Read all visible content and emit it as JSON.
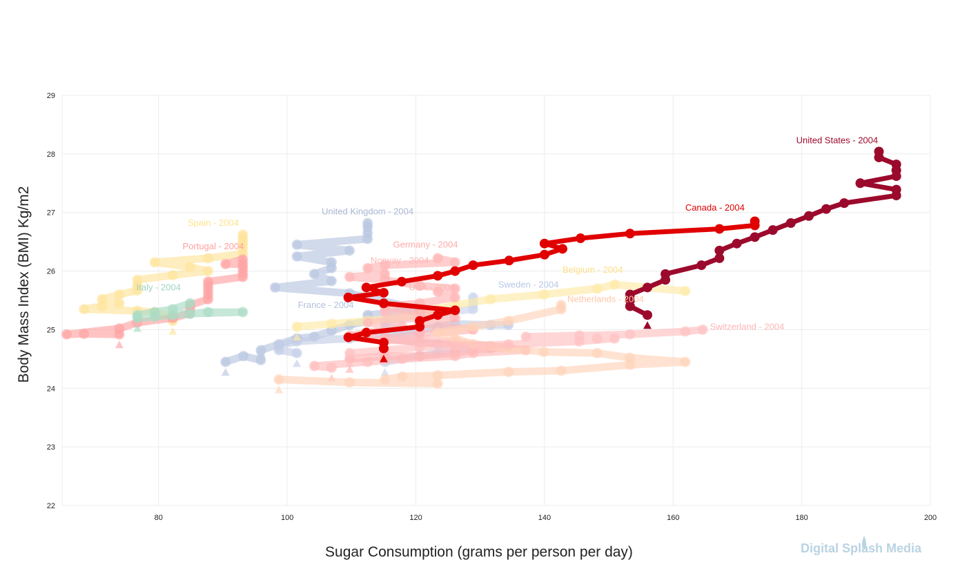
{
  "watermark": "Digital Splash Media",
  "chart_data": {
    "type": "line",
    "title": "",
    "xlabel": "Sugar Consumption (grams per person per day)",
    "ylabel": "Body Mass Index (BMI) Kg/m2",
    "xlim": [
      65,
      200
    ],
    "ylim": [
      22,
      29
    ],
    "xticks": [
      80,
      100,
      120,
      140,
      160,
      180,
      200
    ],
    "yticks": [
      22,
      23,
      24,
      25,
      26,
      27,
      28,
      29
    ],
    "grid": true,
    "legend": "none",
    "series": [
      {
        "name": "United States - 2004",
        "color": "#9b0a2c",
        "highlight": true,
        "points": [
          [
            156,
            25.25
          ],
          [
            153.3,
            25.4
          ],
          [
            153.3,
            25.5
          ],
          [
            153.3,
            25.6
          ],
          [
            156,
            25.72
          ],
          [
            158.8,
            25.85
          ],
          [
            158.8,
            25.95
          ],
          [
            164.4,
            26.1
          ],
          [
            167.2,
            26.22
          ],
          [
            167.2,
            26.35
          ],
          [
            169.9,
            26.47
          ],
          [
            172.7,
            26.58
          ],
          [
            175.5,
            26.7
          ],
          [
            178.3,
            26.82
          ],
          [
            181.1,
            26.94
          ],
          [
            183.8,
            27.06
          ],
          [
            186.6,
            27.16
          ],
          [
            194.7,
            27.29
          ],
          [
            194.7,
            27.39
          ],
          [
            189.1,
            27.5
          ],
          [
            194.7,
            27.62
          ],
          [
            194.7,
            27.72
          ],
          [
            194.7,
            27.82
          ],
          [
            192.0,
            27.94
          ],
          [
            192.0,
            28.04
          ]
        ]
      },
      {
        "name": "Canada - 2004",
        "color": "#e00000",
        "highlight": true,
        "points": [
          [
            115.0,
            24.68
          ],
          [
            115.0,
            24.78
          ],
          [
            109.5,
            24.87
          ],
          [
            112.3,
            24.95
          ],
          [
            120.6,
            25.05
          ],
          [
            120.6,
            25.15
          ],
          [
            123.4,
            25.25
          ],
          [
            126.1,
            25.33
          ],
          [
            115.0,
            25.45
          ],
          [
            109.5,
            25.55
          ],
          [
            115.0,
            25.63
          ],
          [
            112.3,
            25.72
          ],
          [
            117.8,
            25.82
          ],
          [
            123.4,
            25.92
          ],
          [
            126.1,
            26.0
          ],
          [
            128.9,
            26.1
          ],
          [
            134.5,
            26.18
          ],
          [
            140.0,
            26.28
          ],
          [
            142.8,
            26.38
          ],
          [
            140.0,
            26.47
          ],
          [
            145.6,
            26.56
          ],
          [
            153.3,
            26.64
          ],
          [
            167.2,
            26.72
          ],
          [
            172.7,
            26.78
          ],
          [
            172.7,
            26.85
          ]
        ]
      },
      {
        "name": "United Kingdom - 2004",
        "color": "#b8c6e0",
        "highlight": false,
        "points": [
          [
            90.4,
            24.45
          ],
          [
            93.2,
            24.55
          ],
          [
            95.9,
            24.48
          ],
          [
            95.9,
            24.65
          ],
          [
            98.7,
            24.75
          ],
          [
            101.5,
            24.85
          ],
          [
            104.2,
            24.88
          ],
          [
            106.9,
            24.98
          ],
          [
            109.7,
            25.08
          ],
          [
            112.5,
            25.15
          ],
          [
            112.5,
            25.25
          ],
          [
            120.6,
            25.35
          ],
          [
            109.7,
            25.62
          ],
          [
            98.1,
            25.72
          ],
          [
            106.9,
            25.83
          ],
          [
            104.2,
            25.95
          ],
          [
            106.9,
            26.05
          ],
          [
            106.9,
            26.15
          ],
          [
            101.5,
            26.25
          ],
          [
            109.7,
            26.35
          ],
          [
            101.5,
            26.45
          ],
          [
            112.5,
            26.55
          ],
          [
            112.5,
            26.65
          ],
          [
            112.5,
            26.75
          ],
          [
            112.5,
            26.82
          ]
        ]
      },
      {
        "name": "France - 2004",
        "color": "#c3cee6",
        "highlight": false,
        "points": [
          [
            101.5,
            24.6
          ],
          [
            98.7,
            24.65
          ],
          [
            98.7,
            24.72
          ],
          [
            101.5,
            24.8
          ],
          [
            109.7,
            24.85
          ],
          [
            115.2,
            24.92
          ],
          [
            120.6,
            25.0
          ],
          [
            123.4,
            25.05
          ],
          [
            126.1,
            25.1
          ],
          [
            131.6,
            25.08
          ],
          [
            134.4,
            25.08
          ]
        ]
      },
      {
        "name": "Sweden - 2004",
        "color": "#c9d6ee",
        "highlight": false,
        "points": [
          [
            115.2,
            24.45
          ],
          [
            120.6,
            24.55
          ],
          [
            123.4,
            24.6
          ],
          [
            126.1,
            24.65
          ],
          [
            128.9,
            24.68
          ],
          [
            123.4,
            24.75
          ],
          [
            115.2,
            24.85
          ],
          [
            120.6,
            24.95
          ],
          [
            115.2,
            25.05
          ],
          [
            115.2,
            25.15
          ],
          [
            120.6,
            25.25
          ],
          [
            128.9,
            25.35
          ],
          [
            128.9,
            25.45
          ],
          [
            128.9,
            25.55
          ]
        ]
      },
      {
        "name": "Belgium - 2004",
        "color": "#fde9a6",
        "highlight": false,
        "points": [
          [
            101.5,
            25.05
          ],
          [
            106.9,
            25.1
          ],
          [
            112.5,
            25.15
          ],
          [
            120.6,
            25.25
          ],
          [
            123.4,
            25.35
          ],
          [
            126.1,
            25.42
          ],
          [
            131.6,
            25.52
          ],
          [
            139.9,
            25.6
          ],
          [
            148.2,
            25.7
          ],
          [
            150.9,
            25.77
          ],
          [
            161.9,
            25.66
          ]
        ]
      },
      {
        "name": "Spain - 2004",
        "color": "#fde49b",
        "highlight": false,
        "points": [
          [
            82.2,
            25.15
          ],
          [
            82.2,
            25.22
          ],
          [
            79.4,
            25.3
          ],
          [
            76.7,
            25.32
          ],
          [
            68.4,
            25.35
          ],
          [
            71.2,
            25.4
          ],
          [
            73.9,
            25.45
          ],
          [
            71.2,
            25.52
          ],
          [
            73.9,
            25.6
          ],
          [
            76.7,
            25.67
          ],
          [
            76.7,
            25.75
          ],
          [
            76.7,
            25.85
          ],
          [
            82.2,
            25.93
          ],
          [
            87.7,
            26.0
          ],
          [
            84.9,
            26.07
          ],
          [
            79.4,
            26.15
          ],
          [
            87.7,
            26.22
          ],
          [
            93.1,
            26.3
          ],
          [
            93.1,
            26.4
          ],
          [
            93.1,
            26.48
          ],
          [
            93.1,
            26.55
          ],
          [
            93.1,
            26.62
          ]
        ]
      },
      {
        "name": "Portugal - 2004",
        "color": "#ffa3a3",
        "highlight": false,
        "points": [
          [
            73.9,
            24.92
          ],
          [
            68.4,
            24.93
          ],
          [
            65.7,
            24.92
          ],
          [
            73.9,
            25.02
          ],
          [
            76.7,
            25.12
          ],
          [
            82.2,
            25.2
          ],
          [
            84.9,
            25.28
          ],
          [
            84.9,
            25.35
          ],
          [
            84.9,
            25.42
          ],
          [
            87.7,
            25.52
          ],
          [
            87.7,
            25.6
          ],
          [
            87.7,
            25.68
          ],
          [
            87.7,
            25.75
          ],
          [
            87.7,
            25.82
          ],
          [
            93.1,
            25.9
          ],
          [
            93.1,
            25.97
          ],
          [
            93.1,
            26.05
          ],
          [
            93.1,
            26.12
          ],
          [
            90.4,
            26.12
          ],
          [
            93.1,
            26.2
          ]
        ]
      },
      {
        "name": "Italy - 2004",
        "color": "#a9dcc4",
        "highlight": false,
        "points": [
          [
            76.7,
            25.2
          ],
          [
            79.4,
            25.22
          ],
          [
            82.2,
            25.25
          ],
          [
            84.9,
            25.27
          ],
          [
            87.7,
            25.3
          ],
          [
            93.1,
            25.3
          ],
          [
            76.7,
            25.25
          ],
          [
            79.4,
            25.3
          ],
          [
            82.2,
            25.35
          ],
          [
            84.9,
            25.45
          ]
        ]
      },
      {
        "name": "Germany - 2004",
        "color": "#ffb3b3",
        "highlight": false,
        "points": [
          [
            109.7,
            24.5
          ],
          [
            115.2,
            24.55
          ],
          [
            120.6,
            24.55
          ],
          [
            126.1,
            24.6
          ],
          [
            128.9,
            24.65
          ],
          [
            131.6,
            24.68
          ],
          [
            134.4,
            24.7
          ],
          [
            126.1,
            24.75
          ],
          [
            120.6,
            24.78
          ],
          [
            115.2,
            24.85
          ],
          [
            120.6,
            24.92
          ],
          [
            128.9,
            25.0
          ],
          [
            120.6,
            25.1
          ],
          [
            126.1,
            25.2
          ],
          [
            120.6,
            25.3
          ],
          [
            115.2,
            25.4
          ],
          [
            120.6,
            25.45
          ],
          [
            126.1,
            25.55
          ],
          [
            123.4,
            25.65
          ],
          [
            126.1,
            25.7
          ],
          [
            120.6,
            25.75
          ],
          [
            115.2,
            25.85
          ],
          [
            109.7,
            25.9
          ],
          [
            115.2,
            25.95
          ],
          [
            112.5,
            26.05
          ],
          [
            115.2,
            26.1
          ],
          [
            126.1,
            26.15
          ],
          [
            123.4,
            26.22
          ]
        ]
      },
      {
        "name": "Norway - 2004",
        "color": "#ffbcbc",
        "highlight": false,
        "points": [
          [
            106.9,
            24.35
          ],
          [
            104.2,
            24.38
          ],
          [
            112.5,
            24.45
          ],
          [
            117.9,
            24.5
          ],
          [
            126.1,
            24.55
          ],
          [
            128.9,
            24.6
          ],
          [
            137.1,
            24.65
          ],
          [
            131.6,
            24.72
          ],
          [
            126.1,
            24.8
          ],
          [
            115.2,
            24.82
          ],
          [
            109.7,
            24.9
          ],
          [
            117.9,
            25.05
          ],
          [
            112.5,
            25.12
          ],
          [
            120.6,
            25.2
          ],
          [
            115.2,
            25.3
          ]
        ]
      },
      {
        "name": "Netherlands - 2004",
        "color": "#ffd2b8",
        "highlight": false,
        "points": [
          [
            98.7,
            24.15
          ],
          [
            109.7,
            24.1
          ],
          [
            123.4,
            24.08
          ],
          [
            115.2,
            24.15
          ],
          [
            117.9,
            24.2
          ],
          [
            123.4,
            24.22
          ],
          [
            134.4,
            24.28
          ],
          [
            142.6,
            24.3
          ],
          [
            153.3,
            24.4
          ],
          [
            161.9,
            24.45
          ],
          [
            153.3,
            24.52
          ],
          [
            148.2,
            24.6
          ],
          [
            139.9,
            24.62
          ],
          [
            134.4,
            24.68
          ],
          [
            128.9,
            24.75
          ],
          [
            126.1,
            24.85
          ],
          [
            123.4,
            24.95
          ],
          [
            128.9,
            25.05
          ],
          [
            134.4,
            25.15
          ],
          [
            142.6,
            25.35
          ],
          [
            142.6,
            25.42
          ]
        ]
      },
      {
        "name": "Switzerland - 2004",
        "color": "#ffc0c0",
        "highlight": false,
        "points": [
          [
            109.7,
            24.6
          ],
          [
            115.2,
            24.65
          ],
          [
            120.6,
            24.7
          ],
          [
            126.1,
            24.72
          ],
          [
            134.4,
            24.75
          ],
          [
            145.4,
            24.8
          ],
          [
            150.9,
            24.85
          ],
          [
            148.2,
            24.85
          ],
          [
            137.1,
            24.88
          ],
          [
            145.4,
            24.9
          ],
          [
            153.3,
            24.92
          ],
          [
            161.9,
            24.97
          ],
          [
            164.6,
            25.0
          ]
        ]
      }
    ],
    "labels": [
      {
        "text": "United States - 2004",
        "at": [
          185.5,
          28.18
        ],
        "color": "#9b0a2c"
      },
      {
        "text": "Canada - 2004",
        "at": [
          166.5,
          27.03
        ],
        "color": "#e00000"
      },
      {
        "text": "United Kingdom - 2004",
        "at": [
          112.5,
          26.97
        ],
        "color": "#aab7d4"
      },
      {
        "text": "Spain - 2004",
        "at": [
          88.5,
          26.77
        ],
        "color": "#fde38a"
      },
      {
        "text": "Germany - 2004",
        "at": [
          121.5,
          26.4
        ],
        "color": "#ffaaaa"
      },
      {
        "text": "Portugal - 2004",
        "at": [
          88.5,
          26.37
        ],
        "color": "#ff9f9f"
      },
      {
        "text": "Norway - 2004",
        "at": [
          117.5,
          26.13
        ],
        "color": "#ffb5b5"
      },
      {
        "text": "Belgium - 2004",
        "at": [
          147.5,
          25.97
        ],
        "color": "#fdde85"
      },
      {
        "text": "Italy - 2004",
        "at": [
          80.0,
          25.67
        ],
        "color": "#9ed6bb"
      },
      {
        "text": "Sweden - 2004",
        "at": [
          137.5,
          25.72
        ],
        "color": "#b8c8e6"
      },
      {
        "text": "USA - 2004",
        "at": [
          122.5,
          25.67
        ],
        "color": "#ffb5b5"
      },
      {
        "text": "France - 2004",
        "at": [
          106.0,
          25.37
        ],
        "color": "#b3c0dd"
      },
      {
        "text": "Netherlands - 2004",
        "at": [
          149.5,
          25.47
        ],
        "color": "#ffc8a8"
      },
      {
        "text": "Switzerland - 2004",
        "at": [
          171.5,
          25.0
        ],
        "color": "#ffb5b5"
      }
    ]
  }
}
